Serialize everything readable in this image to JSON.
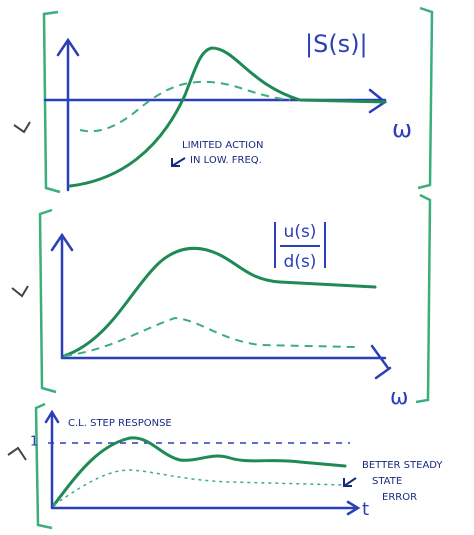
{
  "panels": [
    {
      "title": "|S(s)|",
      "x_label": "ω",
      "annotation": [
        "LIMITED ACTION",
        "IN LOW. FREQ."
      ]
    },
    {
      "title_numerator": "u(s)",
      "title_denominator": "d(s)",
      "x_label": "ω"
    },
    {
      "title": "C.L. STEP RESPONSE",
      "y_tick": "1",
      "x_label": "t",
      "annotation": [
        "BETTER STEADY",
        "STATE",
        "ERROR"
      ]
    }
  ]
}
